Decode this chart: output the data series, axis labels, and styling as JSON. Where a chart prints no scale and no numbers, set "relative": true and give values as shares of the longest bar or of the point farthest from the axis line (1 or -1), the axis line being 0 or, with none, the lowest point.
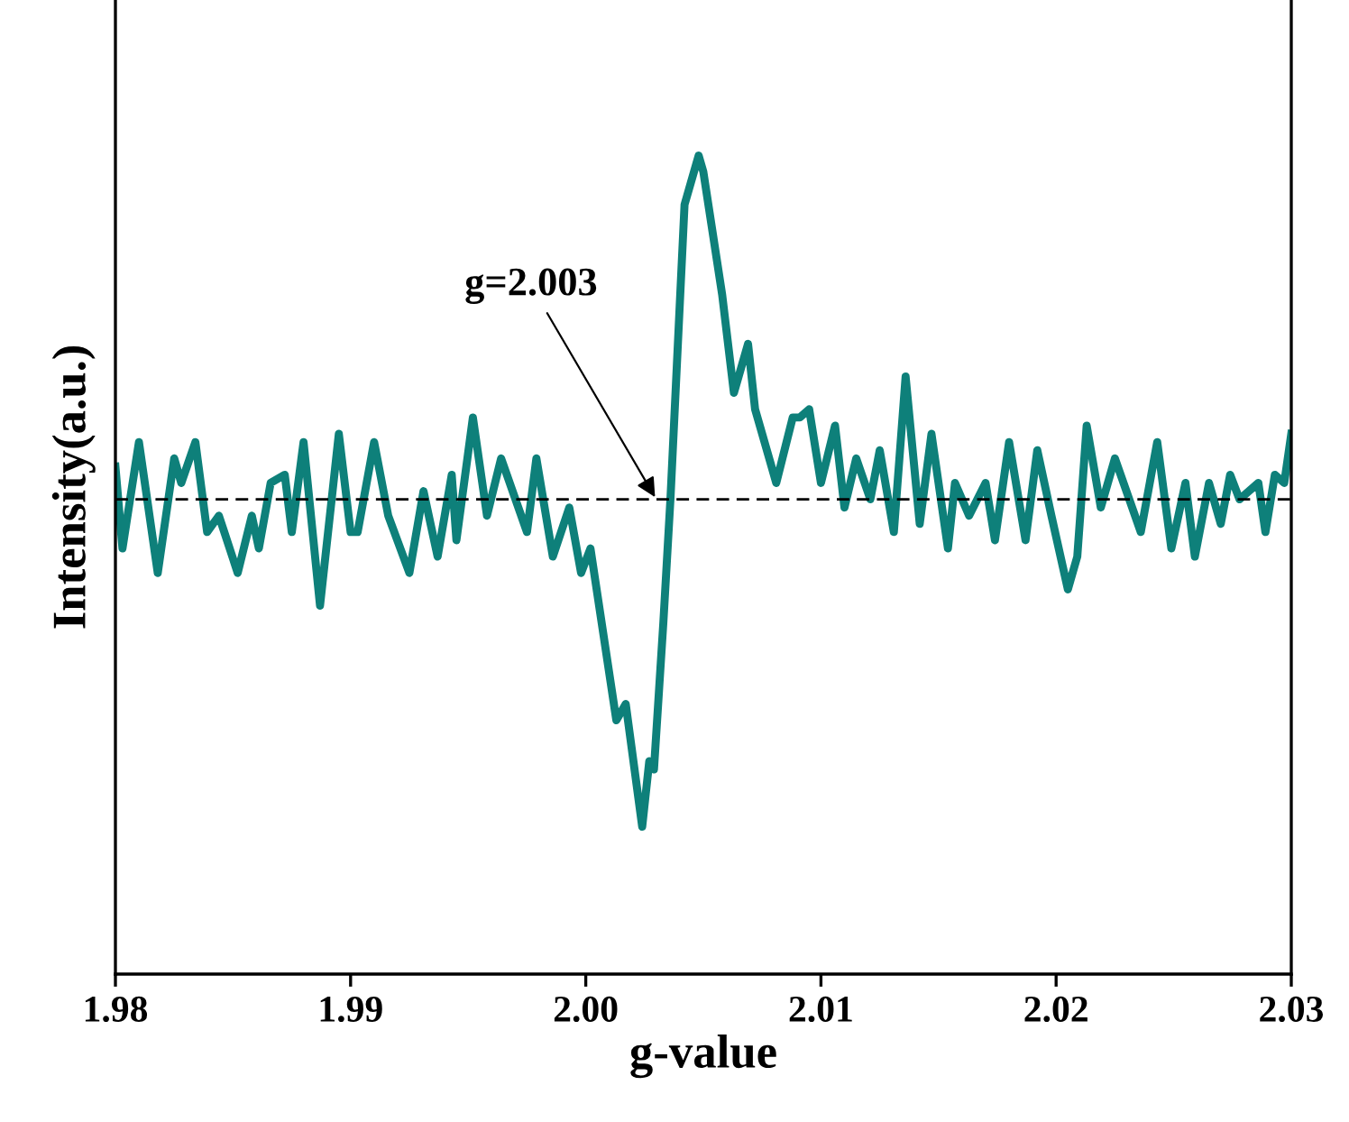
{
  "chart_data": {
    "type": "line",
    "relative": true,
    "xlabel": "g-value",
    "ylabel": "Intensity(a.u.)",
    "xlim": [
      1.98,
      2.03
    ],
    "xticks": [
      {
        "value": 1.98,
        "label": "1.98"
      },
      {
        "value": 1.99,
        "label": "1.99"
      },
      {
        "value": 2.0,
        "label": "2.00"
      },
      {
        "value": 2.01,
        "label": "2.01"
      },
      {
        "value": 2.02,
        "label": "2.02"
      },
      {
        "value": 2.03,
        "label": "2.03"
      }
    ],
    "tick_labels": "x",
    "grid": false,
    "legend": false,
    "marker": "none",
    "line_style": "solid",
    "x": [
      1.98,
      1.9803,
      1.981,
      1.9818,
      1.9825,
      1.9828,
      1.9834,
      1.9839,
      1.9844,
      1.9852,
      1.9858,
      1.9861,
      1.9866,
      1.9872,
      1.9875,
      1.988,
      1.9887,
      1.9895,
      1.99,
      1.9903,
      1.991,
      1.9916,
      1.9925,
      1.9931,
      1.9937,
      1.9943,
      1.9945,
      1.9952,
      1.9958,
      1.9964,
      1.9975,
      1.9979,
      1.9986,
      1.9993,
      1.9998,
      2.0002,
      2.0013,
      2.0017,
      2.0024,
      2.0027,
      2.0029,
      2.0033,
      2.0036,
      2.0042,
      2.0048,
      2.005,
      2.0058,
      2.0063,
      2.0069,
      2.0072,
      2.0081,
      2.0088,
      2.0091,
      2.0095,
      2.01,
      2.0106,
      2.011,
      2.0115,
      2.0121,
      2.0125,
      2.0131,
      2.0136,
      2.0142,
      2.0147,
      2.0154,
      2.0157,
      2.0163,
      2.017,
      2.0174,
      2.018,
      2.0187,
      2.0192,
      2.0198,
      2.0205,
      2.0209,
      2.0213,
      2.0219,
      2.0225,
      2.0236,
      2.0243,
      2.0249,
      2.0255,
      2.0259,
      2.0265,
      2.027,
      2.0274,
      2.0278,
      2.0286,
      2.0289,
      2.0293,
      2.0297,
      2.03
    ],
    "series": [
      {
        "color": "#0e807a",
        "values": [
          0.62,
          0.52,
          0.65,
          0.49,
          0.63,
          0.6,
          0.65,
          0.54,
          0.56,
          0.49,
          0.56,
          0.52,
          0.6,
          0.61,
          0.54,
          0.65,
          0.45,
          0.66,
          0.54,
          0.54,
          0.65,
          0.56,
          0.49,
          0.59,
          0.51,
          0.61,
          0.53,
          0.68,
          0.56,
          0.63,
          0.54,
          0.63,
          0.51,
          0.57,
          0.49,
          0.52,
          0.31,
          0.33,
          0.18,
          0.26,
          0.25,
          0.43,
          0.58,
          0.94,
          1.0,
          0.98,
          0.83,
          0.71,
          0.77,
          0.69,
          0.6,
          0.68,
          0.68,
          0.69,
          0.6,
          0.67,
          0.57,
          0.63,
          0.58,
          0.64,
          0.54,
          0.73,
          0.55,
          0.66,
          0.52,
          0.6,
          0.56,
          0.6,
          0.53,
          0.65,
          0.53,
          0.64,
          0.56,
          0.47,
          0.51,
          0.67,
          0.57,
          0.63,
          0.54,
          0.65,
          0.52,
          0.6,
          0.51,
          0.6,
          0.55,
          0.61,
          0.58,
          0.6,
          0.54,
          0.61,
          0.6,
          0.66
        ]
      }
    ],
    "ref_lines": [
      {
        "axis": "y",
        "value": 0.58,
        "color": "#000000",
        "line_style": "dashed"
      }
    ],
    "annotations": [
      {
        "text": "g=2.003",
        "x": 2.003,
        "y": 0.58
      }
    ]
  }
}
